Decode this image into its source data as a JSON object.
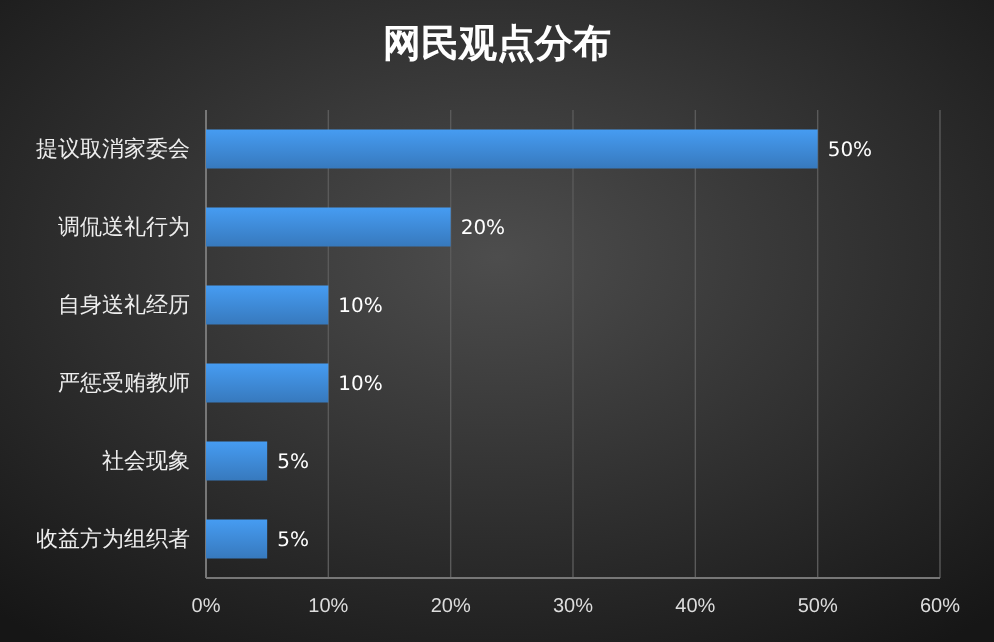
{
  "chart_data": {
    "type": "bar",
    "title": "网民观点分布",
    "orientation": "horizontal",
    "categories": [
      "提议取消家委会",
      "调侃送礼行为",
      "自身送礼经历",
      "严惩受贿教师",
      "社会现象",
      "收益方为组织者"
    ],
    "values": [
      50,
      20,
      10,
      10,
      5,
      5
    ],
    "value_labels": [
      "50%",
      "20%",
      "10%",
      "10%",
      "5%",
      "5%"
    ],
    "color": "#3d87d2",
    "xlim": [
      0,
      60
    ],
    "xticks": [
      {
        "value": 0,
        "label": "0%"
      },
      {
        "value": 10,
        "label": "10%"
      },
      {
        "value": 20,
        "label": "20%"
      },
      {
        "value": 30,
        "label": "30%"
      },
      {
        "value": 40,
        "label": "40%"
      },
      {
        "value": 50,
        "label": "50%"
      },
      {
        "value": 60,
        "label": "60%"
      }
    ],
    "grid": "x"
  }
}
